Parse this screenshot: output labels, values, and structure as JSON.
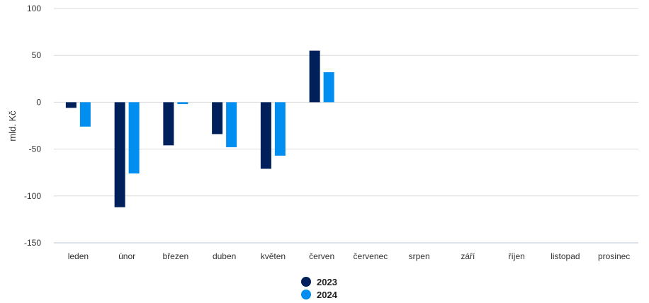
{
  "chart_data": {
    "type": "bar",
    "ylabel": "mld. Kč",
    "ylim": [
      -150,
      100
    ],
    "yticks": [
      "100",
      "50",
      "0",
      "-50",
      "-100",
      "-150"
    ],
    "grid": true,
    "legend_position": "bottom-center",
    "categories": [
      "leden",
      "únor",
      "březen",
      "duben",
      "květen",
      "červen",
      "červenec",
      "srpen",
      "září",
      "říjen",
      "listopad",
      "prosinec"
    ],
    "series": [
      {
        "name": "2023",
        "color": "#00205b",
        "values": [
          -6,
          -112,
          -46,
          -34,
          -71,
          55,
          null,
          null,
          null,
          null,
          null,
          null
        ]
      },
      {
        "name": "2024",
        "color": "#008ef0",
        "values": [
          -26,
          -76,
          -2,
          -48,
          -57,
          32,
          null,
          null,
          null,
          null,
          null,
          null
        ]
      }
    ]
  }
}
